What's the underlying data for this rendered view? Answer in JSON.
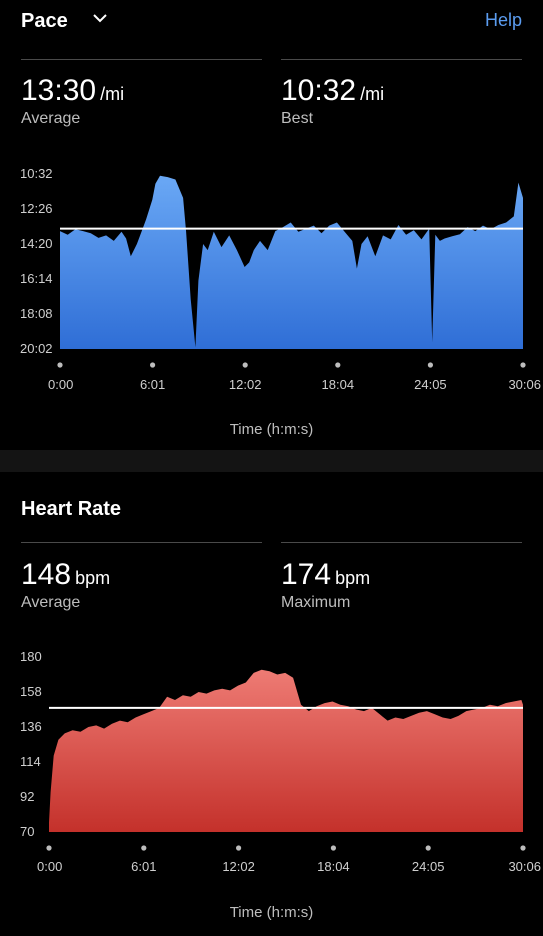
{
  "pace": {
    "title": "Pace",
    "help_label": "Help",
    "average": {
      "value": "13:30",
      "unit": "/mi",
      "label": "Average"
    },
    "best": {
      "value": "10:32",
      "unit": "/mi",
      "label": "Best"
    }
  },
  "heart_rate": {
    "title": "Heart Rate",
    "average": {
      "value": "148",
      "unit": "bpm",
      "label": "Average"
    },
    "maximum": {
      "value": "174",
      "unit": "bpm",
      "label": "Maximum"
    }
  },
  "colors": {
    "pace_fill_top": "#6aa8f5",
    "pace_fill_bottom": "#2f6ed6",
    "hr_fill_top": "#ee7b74",
    "hr_fill_bottom": "#c4312b",
    "accent": "#5b9cf0"
  },
  "chart_data": [
    {
      "type": "area",
      "xlabel": "Time (h:m:s)",
      "x_ticks": [
        "0:00",
        "6:01",
        "12:02",
        "18:04",
        "24:05",
        "30:06"
      ],
      "y_ticks": [
        "10:32",
        "12:26",
        "14:20",
        "16:14",
        "18:08",
        "20:02"
      ],
      "ylim_sec": [
        632,
        1202
      ],
      "xlim_min": [
        0,
        30.1
      ],
      "reference_line_sec": 810,
      "series": [
        {
          "x": [
            0,
            0.5,
            1,
            1.5,
            2,
            2.5,
            3,
            3.5,
            4,
            4.3,
            4.6,
            5,
            5.3,
            5.6,
            6,
            6.2,
            6.5,
            7,
            7.5,
            8,
            8.2,
            8.5,
            8.8,
            9,
            9.3,
            9.6,
            10,
            10.5,
            11,
            11.5,
            12,
            12.3,
            12.6,
            13,
            13.5,
            14,
            14.5,
            15,
            15.5,
            16,
            16.5,
            17,
            17.5,
            18,
            18.5,
            19,
            19.3,
            19.6,
            20,
            20.5,
            21,
            21.5,
            22,
            22.5,
            23,
            23.5,
            24,
            24.2,
            24.4,
            24.7,
            25,
            25.5,
            26,
            26.5,
            27,
            27.5,
            28,
            28.5,
            29,
            29.5,
            29.8,
            30.1
          ],
          "y": [
            818,
            830,
            812,
            818,
            825,
            840,
            832,
            850,
            820,
            842,
            900,
            860,
            820,
            780,
            716,
            664,
            638,
            642,
            650,
            710,
            820,
            1040,
            1196,
            980,
            860,
            880,
            820,
            870,
            832,
            880,
            935,
            920,
            880,
            850,
            880,
            818,
            805,
            790,
            820,
            810,
            800,
            825,
            800,
            790,
            820,
            850,
            940,
            860,
            835,
            900,
            832,
            845,
            798,
            830,
            815,
            845,
            810,
            1180,
            830,
            850,
            842,
            835,
            828,
            805,
            818,
            800,
            812,
            798,
            790,
            770,
            660,
            710
          ]
        }
      ]
    },
    {
      "type": "area",
      "xlabel": "Time (h:m:s)",
      "x_ticks": [
        "0:00",
        "6:01",
        "12:02",
        "18:04",
        "24:05",
        "30:06"
      ],
      "y_ticks": [
        "180",
        "158",
        "136",
        "114",
        "92",
        "70"
      ],
      "ylim": [
        70,
        180
      ],
      "xlim_min": [
        0,
        30.1
      ],
      "reference_line": 148,
      "series": [
        {
          "x": [
            0,
            0.1,
            0.3,
            0.6,
            1,
            1.5,
            2,
            2.5,
            3,
            3.5,
            4,
            4.5,
            5,
            5.5,
            6,
            6.5,
            7,
            7.5,
            8,
            8.5,
            9,
            9.5,
            10,
            10.5,
            11,
            11.5,
            12,
            12.5,
            13,
            13.5,
            14,
            14.5,
            15,
            15.5,
            16,
            16.5,
            17,
            17.5,
            18,
            18.5,
            19,
            19.5,
            20,
            20.5,
            21,
            21.5,
            22,
            22.5,
            23,
            23.5,
            24,
            24.5,
            25,
            25.5,
            26,
            26.5,
            27,
            27.5,
            28,
            28.5,
            29,
            29.5,
            30,
            30.1
          ],
          "y": [
            76,
            95,
            118,
            128,
            132,
            134,
            133,
            136,
            137,
            135,
            138,
            140,
            139,
            142,
            144,
            146,
            148,
            155,
            153,
            156,
            155,
            158,
            157,
            159,
            160,
            159,
            162,
            164,
            170,
            172,
            171,
            169,
            170,
            167,
            150,
            146,
            149,
            151,
            152,
            150,
            149,
            147,
            146,
            148,
            144,
            140,
            142,
            141,
            143,
            145,
            146,
            144,
            142,
            141,
            143,
            146,
            147,
            148,
            150,
            149,
            151,
            152,
            153,
            150
          ]
        }
      ]
    }
  ]
}
